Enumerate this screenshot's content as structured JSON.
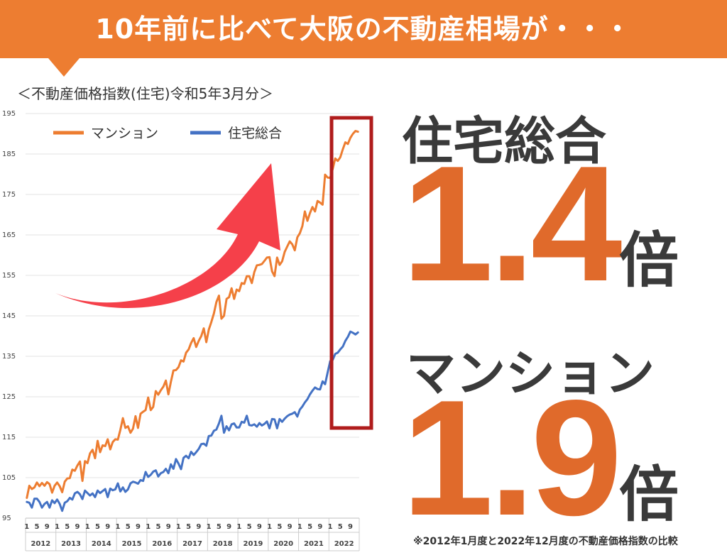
{
  "banner": {
    "title": "10年前に比べて大阪の不動産相場が・・・"
  },
  "subtitle": "＜不動産価格指数(住宅)令和5年3月分＞",
  "right_panel": {
    "housing_label": "住宅総合",
    "housing_value": "1.4",
    "housing_unit": "倍",
    "mansion_label": "マンション",
    "mansion_value": "1.9",
    "mansion_unit": "倍"
  },
  "footnote": "※2012年1月度と2022年12月度の不動産価格指数の比較",
  "colors": {
    "accent": "#ed7d31",
    "mansion": "#ed7d31",
    "housing": "#4472c4",
    "highlight_box": "#b01c1c",
    "arrow": "#f5404a"
  },
  "chart_data": {
    "type": "line",
    "title": "",
    "xlabel": "",
    "ylabel": "",
    "ylim": [
      95,
      195
    ],
    "yticks": [
      "95",
      "105",
      "115",
      "125",
      "135",
      "145",
      "155",
      "165",
      "175",
      "185",
      "195"
    ],
    "x_month_ticks": [
      "1",
      "5",
      "9"
    ],
    "years": [
      "2012",
      "2013",
      "2014",
      "2015",
      "2016",
      "2017",
      "2018",
      "2019",
      "2020",
      "2021",
      "2022"
    ],
    "grid": true,
    "legend_position": "top-left",
    "series": [
      {
        "name": "マンション",
        "values": [
          100.0,
          103.0,
          102.2,
          102.6,
          103.8,
          102.9,
          103.7,
          103.0,
          103.9,
          103.4,
          101.3,
          103.0,
          103.8,
          102.9,
          101.4,
          104.0,
          104.8,
          104.9,
          107.0,
          106.7,
          108.0,
          109.0,
          104.2,
          109.1,
          108.6,
          111.0,
          111.9,
          109.8,
          114.1,
          111.3,
          113.0,
          112.8,
          114.5,
          112.0,
          113.8,
          114.5,
          114.4,
          116.8,
          119.7,
          117.3,
          117.7,
          116.1,
          117.1,
          120.2,
          117.3,
          120.8,
          121.3,
          121.7,
          124.8,
          121.7,
          122.5,
          126.4,
          125.5,
          126.6,
          127.5,
          129.0,
          125.6,
          128.7,
          131.5,
          131.6,
          132.3,
          134.0,
          133.7,
          135.9,
          136.7,
          138.3,
          139.5,
          137.3,
          138.8,
          140.0,
          141.9,
          138.5,
          141.6,
          143.5,
          145.6,
          148.4,
          150.0,
          144.3,
          145.0,
          149.2,
          149.6,
          151.8,
          149.2,
          151.5,
          151.1,
          153.1,
          152.9,
          154.8,
          154.8,
          153.1,
          155.8,
          157.5,
          157.6,
          157.8,
          158.6,
          159.4,
          159.5,
          156.0,
          154.8,
          159.4,
          157.6,
          158.5,
          160.8,
          162.1,
          163.4,
          162.7,
          161.2,
          164.4,
          165.4,
          167.2,
          170.8,
          168.5,
          170.4,
          171.9,
          170.8,
          173.4,
          173.0,
          172.5,
          179.9,
          179.2,
          179.1,
          181.3,
          183.9,
          183.3,
          184.2,
          186.2,
          187.9,
          187.5,
          189.0,
          190.0,
          190.7,
          190.5
        ]
      },
      {
        "name": "住宅総合",
        "values": [
          99.0,
          98.8,
          97.6,
          99.8,
          99.8,
          99.0,
          97.6,
          98.5,
          99.0,
          97.6,
          99.4,
          98.7,
          99.6,
          98.5,
          96.8,
          98.8,
          99.2,
          100.0,
          99.6,
          101.1,
          101.5,
          100.9,
          99.7,
          101.8,
          101.2,
          100.6,
          101.1,
          100.2,
          101.8,
          101.2,
          101.7,
          102.2,
          100.2,
          102.3,
          101.9,
          102.1,
          103.6,
          101.6,
          102.6,
          101.5,
          102.1,
          103.6,
          104.0,
          103.8,
          103.5,
          104.4,
          104.2,
          106.4,
          105.2,
          105.7,
          106.5,
          106.8,
          105.3,
          106.1,
          106.4,
          107.2,
          106.1,
          108.3,
          107.2,
          109.6,
          108.5,
          107.1,
          109.9,
          110.4,
          109.8,
          111.4,
          110.6,
          111.3,
          112.1,
          113.3,
          113.4,
          112.9,
          115.3,
          115.4,
          116.6,
          116.9,
          118.4,
          120.3,
          116.1,
          117.7,
          116.7,
          118.2,
          118.4,
          117.4,
          117.4,
          118.8,
          118.6,
          120.3,
          118.0,
          117.9,
          118.2,
          117.6,
          118.5,
          117.9,
          118.3,
          118.9,
          117.2,
          119.5,
          119.4,
          117.2,
          119.5,
          118.8,
          119.6,
          120.2,
          120.6,
          120.8,
          121.2,
          120.1,
          121.8,
          122.6,
          123.6,
          124.4,
          125.6,
          126.5,
          127.3,
          126.9,
          126.8,
          128.8,
          128.1,
          131.0,
          133.8,
          134.1,
          135.6,
          135.9,
          136.7,
          137.4,
          138.8,
          139.8,
          141.1,
          140.8,
          140.4,
          140.9
        ]
      }
    ]
  }
}
